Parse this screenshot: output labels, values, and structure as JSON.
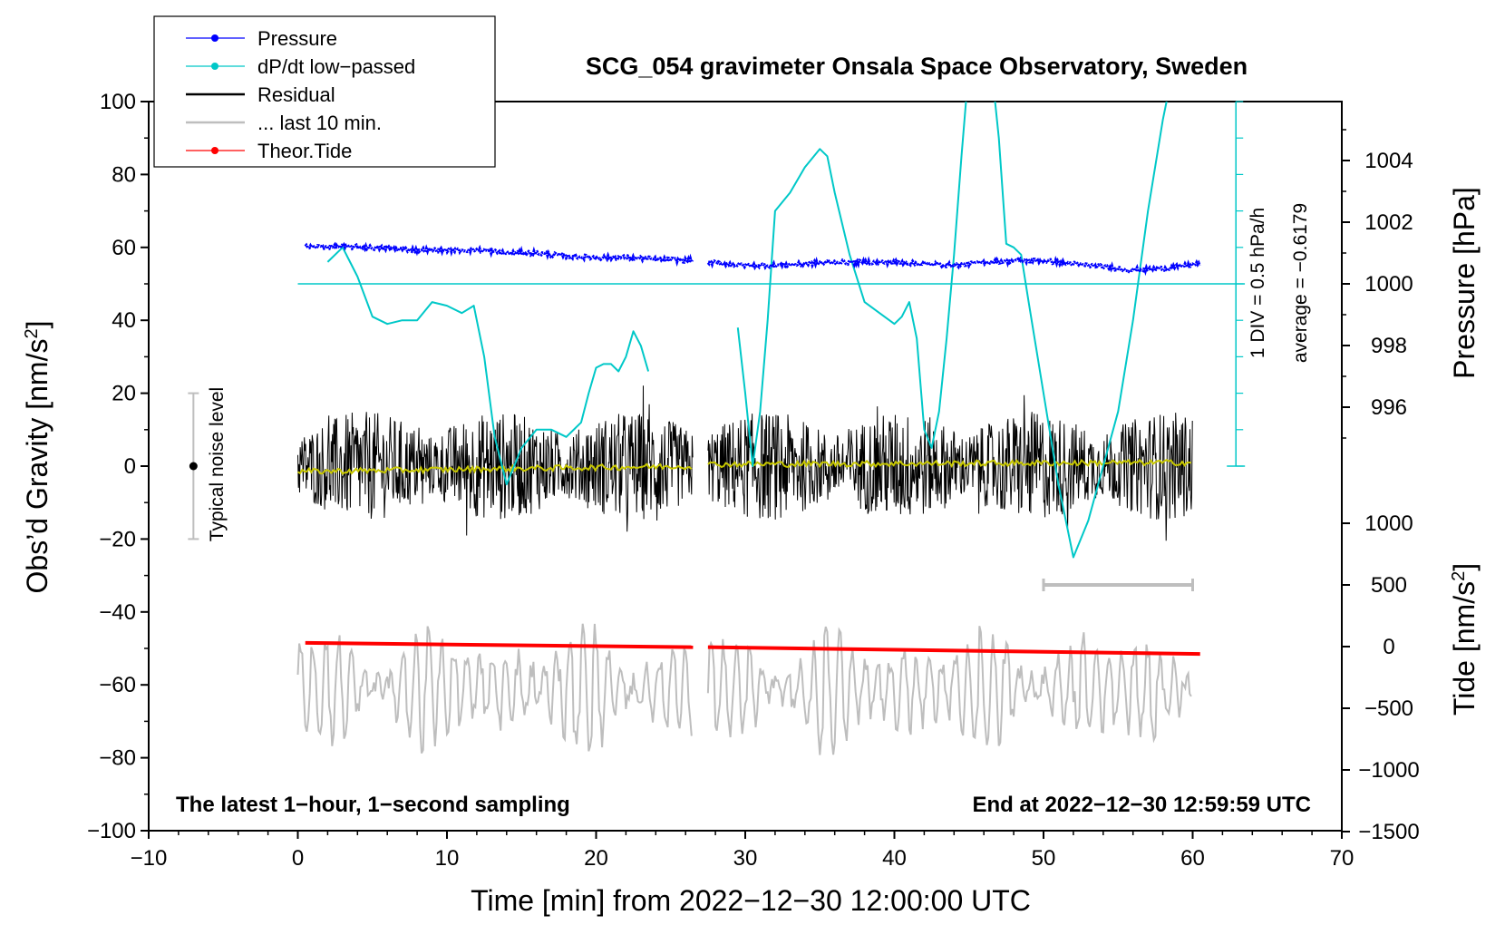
{
  "chart_data": {
    "type": "line",
    "title": "SCG_054 gravimeter Onsala Space Observatory, Sweden",
    "xlabel": "Time [min] from 2022−12−30 12:00:00 UTC",
    "ylabel_main": "Obs’d Gravity [nm/s",
    "ylabel_main_sup": "2",
    "ylabel_main_close": "]",
    "ylabel_pressure": "Pressure [hPa]",
    "ylabel_tide": "Tide [nm/s",
    "ylabel_tide_sup": "2",
    "ylabel_tide_close": "]",
    "xlim": [
      -10,
      70
    ],
    "ylim": [
      -100,
      100
    ],
    "xticks": [
      -10,
      0,
      10,
      20,
      30,
      40,
      50,
      60,
      70
    ],
    "xtick_labels": [
      "−10",
      "0",
      "10",
      "20",
      "30",
      "40",
      "50",
      "60",
      "70"
    ],
    "yticks": [
      -100,
      -80,
      -60,
      -40,
      -20,
      0,
      20,
      40,
      60,
      80,
      100
    ],
    "ytick_labels": [
      "−100",
      "−80",
      "−60",
      "−40",
      "−20",
      "0",
      "20",
      "40",
      "60",
      "80",
      "100"
    ],
    "pressure_axis": {
      "ticks": [
        996,
        998,
        1000,
        1002,
        1004
      ],
      "tick_labels": [
        "996",
        "998",
        "1000",
        "1002",
        "1004"
      ],
      "range_hpa": [
        994,
        1006
      ]
    },
    "tide_axis": {
      "ticks": [
        -1500,
        -1000,
        -500,
        0,
        500,
        1000
      ],
      "tick_labels": [
        "−1500",
        "−1000",
        "−500",
        "0",
        "500",
        "1000"
      ],
      "range": [
        -1500,
        1000
      ]
    },
    "legend_position": "top-left",
    "legend": [
      {
        "label": "Pressure",
        "color": "#0000ff",
        "marker": true
      },
      {
        "label": "dP/dt low−passed",
        "color": "#00c8c8",
        "marker": true
      },
      {
        "label": "Residual",
        "color": "#000000",
        "marker": false
      },
      {
        "label": "... last 10 min.",
        "color": "#bebebe",
        "marker": false
      },
      {
        "label": "Theor.Tide",
        "color": "#ff0000",
        "marker": true
      }
    ],
    "annotations": {
      "bottom_left": "The latest 1−hour, 1−second sampling",
      "bottom_right": "End at 2022−12−30 12:59:59 UTC",
      "noise_label": "Typical noise level",
      "dpdt_scale": "1 DIV = 0.5 hPa/h",
      "dpdt_average": "average = −0.6179"
    },
    "noise_bar": {
      "x": -7,
      "center": 0,
      "low": -20,
      "high": 20
    },
    "last_10min_bar": {
      "x_start": 50,
      "x_end": 60,
      "tide_value": 500
    },
    "dpdt_baseline_hpa": 1000,
    "series": [
      {
        "name": "Pressure",
        "axis": "pressure",
        "color": "#0000ff",
        "segments": [
          {
            "x": [
              0.5,
              2,
              4,
              6,
              8,
              10,
              12,
              14,
              16,
              18,
              20,
              22,
              24,
              26.5
            ],
            "y": [
              1001.2,
              1001.2,
              1001.2,
              1001.15,
              1001.1,
              1001.1,
              1001.1,
              1001.0,
              1001.0,
              1000.9,
              1000.85,
              1000.85,
              1000.8,
              1000.75
            ]
          },
          {
            "x": [
              27.5,
              30,
              32,
              34,
              36,
              38,
              40,
              42,
              44,
              46,
              48,
              50,
              52,
              54,
              56,
              58,
              60.5
            ],
            "y": [
              1000.7,
              1000.6,
              1000.6,
              1000.65,
              1000.7,
              1000.7,
              1000.7,
              1000.65,
              1000.6,
              1000.7,
              1000.75,
              1000.75,
              1000.65,
              1000.55,
              1000.45,
              1000.5,
              1000.65
            ]
          }
        ]
      },
      {
        "name": "dP/dt low-passed",
        "axis": "gravity_units",
        "color": "#00c8c8",
        "segments": [
          {
            "x": [
              2,
              3,
              4,
              5,
              6,
              7,
              8,
              9,
              10,
              11,
              11.8,
              12.5,
              13.2,
              14,
              15,
              16,
              17,
              18,
              19,
              19.5,
              20,
              20.5,
              21,
              21.5,
              22,
              22.5,
              23,
              23.5
            ],
            "y": [
              56,
              60,
              52,
              41,
              39,
              40,
              40,
              45,
              44,
              42,
              44,
              30,
              8,
              -5,
              5,
              10,
              10,
              8,
              12,
              20,
              27,
              28,
              28,
              26,
              30,
              37,
              33,
              26
            ]
          },
          {
            "x": [
              29.5,
              30,
              30.5,
              31,
              31.5,
              32,
              33,
              34,
              35,
              35.5,
              36,
              37,
              38,
              39,
              40,
              40.5,
              41,
              41.5,
              42,
              42.5,
              43,
              43.5,
              44,
              44.5,
              45,
              45.5,
              46,
              46.5,
              47,
              47.5,
              48,
              48.5,
              49,
              50,
              51,
              52,
              53,
              54,
              55,
              56,
              57,
              58,
              58.5
            ],
            "y": [
              38,
              20,
              0,
              15,
              40,
              70,
              75,
              82,
              87,
              85,
              75,
              58,
              45,
              42,
              39,
              41,
              45,
              35,
              10,
              5,
              15,
              35,
              58,
              85,
              110,
              120,
              130,
              110,
              90,
              61,
              60,
              58,
              45,
              20,
              -5,
              -25,
              -15,
              0,
              15,
              40,
              70,
              95,
              105
            ]
          }
        ]
      },
      {
        "name": "Residual",
        "axis": "gravity",
        "color": "#000000",
        "segments": [
          [
            0,
            26.5
          ],
          [
            27.5,
            60
          ]
        ],
        "amplitude": 20,
        "mean": [
          {
            "x": 0,
            "y": -1.5
          },
          {
            "x": 26.5,
            "y": 0
          },
          {
            "x": 27.5,
            "y": 0.5
          },
          {
            "x": 60,
            "y": 1
          }
        ]
      },
      {
        "name": "... last 10 min.",
        "axis": "gravity",
        "color": "#bebebe",
        "segments": [
          [
            0,
            26.5
          ],
          [
            27.5,
            60
          ]
        ],
        "center": -61,
        "amplitude": 18
      },
      {
        "name": "Theor.Tide",
        "axis": "tide",
        "color": "#ff0000",
        "segments": [
          {
            "x": [
              0.5,
              26.5
            ],
            "y": [
              30,
              -5
            ]
          },
          {
            "x": [
              27.5,
              60.5
            ],
            "y": [
              -5,
              -60
            ]
          }
        ]
      }
    ]
  }
}
